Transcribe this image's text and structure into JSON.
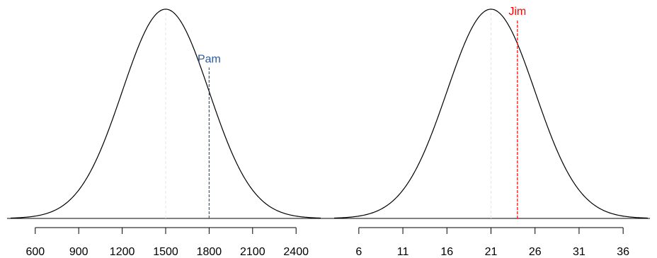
{
  "chart_data": [
    {
      "type": "line",
      "title": "",
      "xlabel": "",
      "ylabel": "",
      "distribution": "normal",
      "mean": 1500,
      "sd": 300,
      "xlim": [
        430,
        2570
      ],
      "xticks": [
        600,
        900,
        1200,
        1500,
        1800,
        2100,
        2400
      ],
      "xtick_labels": [
        "600",
        "900",
        "1200",
        "1500",
        "1800",
        "2100",
        "2400"
      ],
      "mean_line": {
        "x": 1500,
        "style": "dashed",
        "color": "#e6e6e6"
      },
      "annotation": {
        "label": "Pam",
        "x": 1800,
        "color": "#2f5a96",
        "style": "dashed"
      }
    },
    {
      "type": "line",
      "title": "",
      "xlabel": "",
      "ylabel": "",
      "distribution": "normal",
      "mean": 21,
      "sd": 5,
      "xlim": [
        3.2,
        38.8
      ],
      "xticks": [
        6,
        11,
        16,
        21,
        26,
        31,
        36
      ],
      "xtick_labels": [
        "6",
        "11",
        "16",
        "21",
        "26",
        "31",
        "36"
      ],
      "mean_line": {
        "x": 21,
        "style": "dashed",
        "color": "#e6e6e6"
      },
      "annotation": {
        "label": "Jim",
        "x": 24,
        "color": "#ff0000",
        "style": "dashed"
      }
    }
  ]
}
